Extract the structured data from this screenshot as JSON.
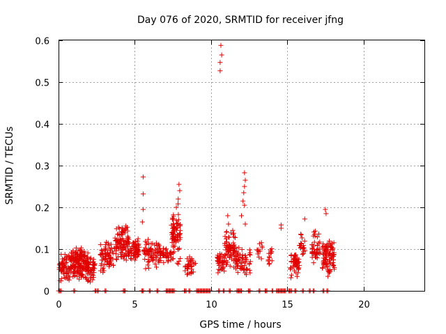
{
  "chart_data": {
    "type": "scatter",
    "title": "Day 076 of 2020, SRMTID for receiver jfng",
    "xlabel": "GPS time / hours",
    "ylabel": "SRMTID / TECUs",
    "xlim": [
      0,
      24
    ],
    "ylim": [
      0,
      0.6
    ],
    "xticks": [
      "0",
      "5",
      "10",
      "15",
      "20"
    ],
    "yticks": [
      "0",
      "0.1",
      "0.2",
      "0.3",
      "0.4",
      "0.5",
      "0.6"
    ],
    "grid": true,
    "marker": "plus",
    "color": "#e00000",
    "clusters": [
      {
        "x": [
          0.05,
          2.4
        ],
        "y": [
          0.02,
          0.09
        ],
        "n": 220
      },
      {
        "x": [
          0.8,
          2.0
        ],
        "y": [
          0.06,
          0.105
        ],
        "n": 60
      },
      {
        "x": [
          2.7,
          3.6
        ],
        "y": [
          0.04,
          0.12
        ],
        "n": 70
      },
      {
        "x": [
          3.6,
          4.6
        ],
        "y": [
          0.07,
          0.16
        ],
        "n": 90
      },
      {
        "x": [
          4.4,
          5.3
        ],
        "y": [
          0.06,
          0.13
        ],
        "n": 70
      },
      {
        "x": [
          5.6,
          6.6
        ],
        "y": [
          0.05,
          0.13
        ],
        "n": 70
      },
      {
        "x": [
          6.6,
          7.4
        ],
        "y": [
          0.06,
          0.11
        ],
        "n": 45
      },
      {
        "x": [
          7.4,
          8.0
        ],
        "y": [
          0.06,
          0.21
        ],
        "n": 80
      },
      {
        "x": [
          8.3,
          9.0
        ],
        "y": [
          0.03,
          0.09
        ],
        "n": 35
      },
      {
        "x": [
          10.4,
          10.9
        ],
        "y": [
          0.04,
          0.1
        ],
        "n": 40
      },
      {
        "x": [
          10.9,
          11.6
        ],
        "y": [
          0.05,
          0.15
        ],
        "n": 70
      },
      {
        "x": [
          11.6,
          12.6
        ],
        "y": [
          0.03,
          0.11
        ],
        "n": 60
      },
      {
        "x": [
          13.0,
          13.4
        ],
        "y": [
          0.07,
          0.12
        ],
        "n": 12
      },
      {
        "x": [
          13.7,
          14.0
        ],
        "y": [
          0.06,
          0.11
        ],
        "n": 15
      },
      {
        "x": [
          15.2,
          15.8
        ],
        "y": [
          0.03,
          0.1
        ],
        "n": 55
      },
      {
        "x": [
          15.8,
          16.2
        ],
        "y": [
          0.07,
          0.14
        ],
        "n": 20
      },
      {
        "x": [
          16.6,
          17.2
        ],
        "y": [
          0.05,
          0.15
        ],
        "n": 40
      },
      {
        "x": [
          17.3,
          18.1
        ],
        "y": [
          0.03,
          0.13
        ],
        "n": 90
      }
    ],
    "points": [
      [
        5.55,
        0.273
      ],
      [
        5.55,
        0.232
      ],
      [
        5.55,
        0.195
      ],
      [
        5.5,
        0.165
      ],
      [
        7.9,
        0.255
      ],
      [
        7.95,
        0.24
      ],
      [
        7.85,
        0.22
      ],
      [
        10.65,
        0.588
      ],
      [
        10.7,
        0.565
      ],
      [
        10.6,
        0.547
      ],
      [
        10.6,
        0.527
      ],
      [
        12.2,
        0.283
      ],
      [
        12.25,
        0.265
      ],
      [
        12.2,
        0.25
      ],
      [
        12.15,
        0.235
      ],
      [
        12.1,
        0.215
      ],
      [
        12.2,
        0.205
      ],
      [
        12.0,
        0.18
      ],
      [
        12.25,
        0.16
      ],
      [
        11.1,
        0.18
      ],
      [
        11.15,
        0.16
      ],
      [
        14.6,
        0.158
      ],
      [
        14.6,
        0.15
      ],
      [
        16.15,
        0.172
      ],
      [
        17.5,
        0.195
      ],
      [
        17.55,
        0.185
      ]
    ],
    "zero_segments": [
      [
        0.0,
        0.2
      ],
      [
        1.0,
        1.1
      ],
      [
        2.4,
        2.5
      ],
      [
        2.55,
        2.65
      ],
      [
        3.05,
        3.15
      ],
      [
        4.25,
        4.4
      ],
      [
        5.45,
        5.6
      ],
      [
        5.95,
        6.05
      ],
      [
        6.45,
        6.55
      ],
      [
        7.05,
        7.6
      ],
      [
        8.25,
        8.4
      ],
      [
        8.55,
        8.65
      ],
      [
        9.05,
        10.0
      ],
      [
        10.5,
        10.6
      ],
      [
        10.8,
        10.9
      ],
      [
        11.2,
        11.3
      ],
      [
        11.7,
        12.0
      ],
      [
        12.45,
        12.6
      ],
      [
        13.15,
        13.25
      ],
      [
        13.55,
        13.7
      ],
      [
        14.0,
        14.1
      ],
      [
        14.3,
        14.9
      ],
      [
        15.1,
        15.3
      ],
      [
        15.5,
        15.6
      ],
      [
        16.0,
        16.1
      ],
      [
        16.45,
        16.55
      ],
      [
        16.7,
        16.8
      ],
      [
        17.35,
        17.45
      ],
      [
        17.6,
        17.7
      ]
    ]
  }
}
